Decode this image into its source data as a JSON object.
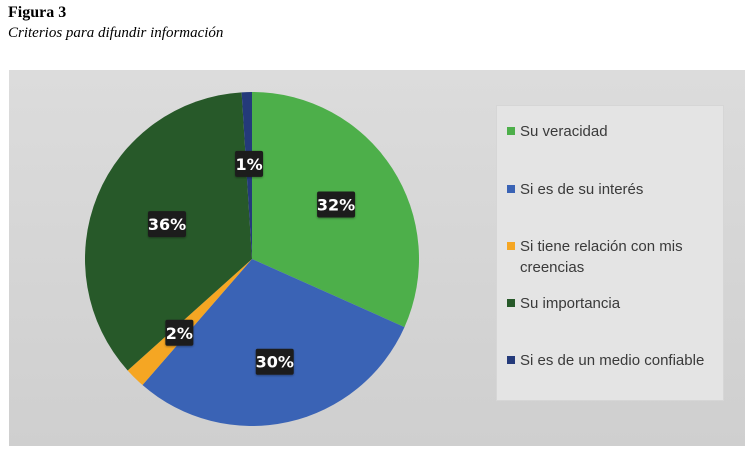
{
  "figure": {
    "number": "Figura 3",
    "title": "Criterios para difundir información"
  },
  "chart_data": {
    "type": "pie",
    "categories": [
      "Su veracidad",
      "Si es de su interés",
      "Si tiene relación con mis creencias",
      "Su importancia",
      "Si es de un medio confiable"
    ],
    "values": [
      32,
      30,
      2,
      36,
      1
    ],
    "data_labels": [
      "32%",
      "30%",
      "2%",
      "36%",
      "1%"
    ],
    "colors": [
      "#4daf4a",
      "#3a63b5",
      "#f5a623",
      "#275929",
      "#243a7a"
    ],
    "legend_position": "right"
  }
}
